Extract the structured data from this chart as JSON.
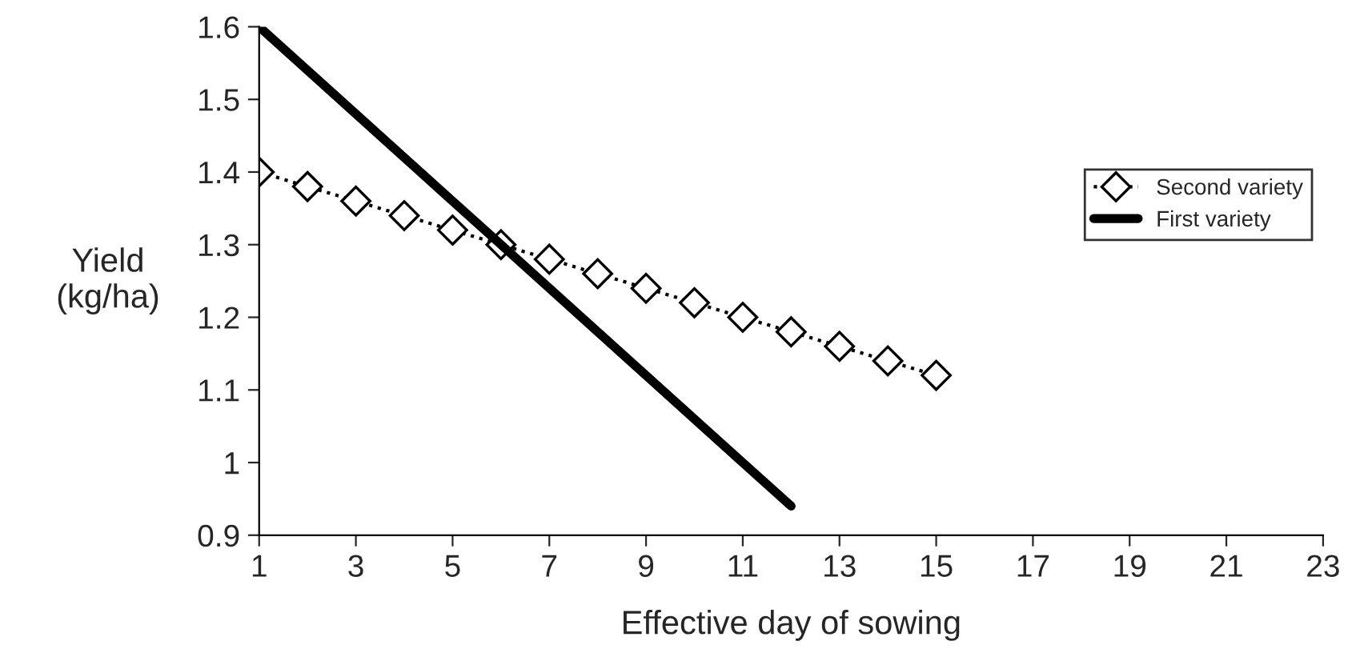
{
  "chart_data": {
    "type": "line",
    "xlabel": "Effective day of sowing",
    "ylabel": "Yield\n(kg/ha)",
    "xlim": [
      1,
      23
    ],
    "xticks": [
      1,
      3,
      5,
      7,
      9,
      11,
      13,
      15,
      17,
      19,
      21,
      23
    ],
    "ylim": [
      0.9,
      1.6
    ],
    "yticks": [
      0.9,
      1,
      1.1,
      1.2,
      1.3,
      1.4,
      1.5,
      1.6
    ],
    "grid": false,
    "legend": "right",
    "series": [
      {
        "name": "Second variety",
        "color": "#000000",
        "marker": "diamond",
        "line_style": "dotted",
        "x": [
          1,
          2,
          3,
          4,
          5,
          6,
          7,
          8,
          9,
          10,
          11,
          12,
          13,
          14,
          15
        ],
        "values": [
          1.4,
          1.38,
          1.36,
          1.34,
          1.32,
          1.3,
          1.28,
          1.26,
          1.24,
          1.22,
          1.2,
          1.18,
          1.16,
          1.14,
          1.12
        ]
      },
      {
        "name": "First variety",
        "color": "#000000",
        "marker": "none",
        "line_style": "solid",
        "x": [
          1,
          2,
          3,
          4,
          5,
          6,
          7,
          8,
          9,
          10,
          11,
          12
        ],
        "values": [
          1.6,
          1.54,
          1.48,
          1.42,
          1.36,
          1.3,
          1.24,
          1.18,
          1.12,
          1.06,
          1.0,
          0.94
        ]
      }
    ]
  }
}
